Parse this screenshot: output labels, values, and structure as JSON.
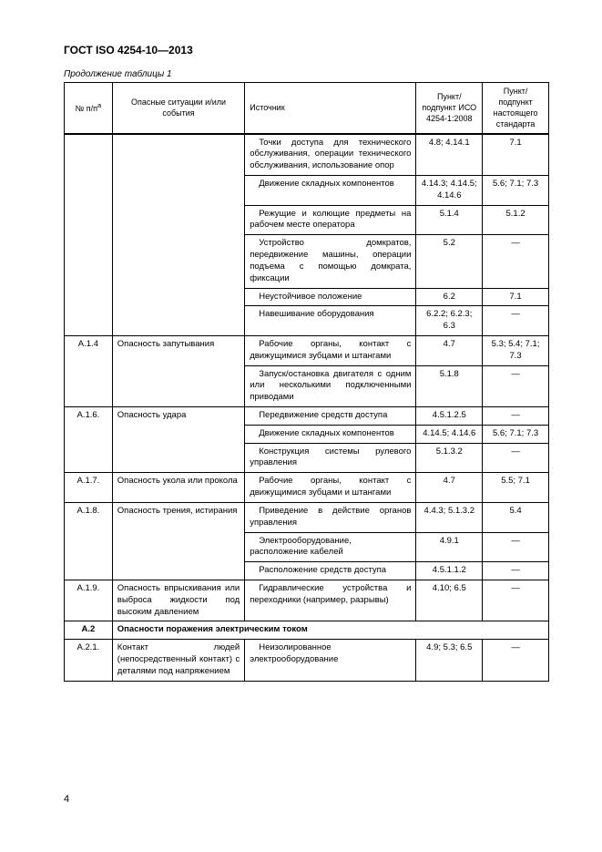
{
  "doc_title": "ГОСТ ISO 4254-10—2013",
  "table_caption": "Продолжение таблицы 1",
  "page_number": "4",
  "headers": {
    "num": "№ п/п",
    "num_sup": "а",
    "hazard": "Опасные ситуации и/или события",
    "source": "Источник",
    "ref1": "Пункт/ подпункт ИСО 4254-1:2008",
    "ref2": "Пункт/ подпункт настоящего стандарта"
  },
  "rows": [
    {
      "num": "",
      "haz": "",
      "src": "Точки доступа для технического обслуживания, операции технического обслуживания, использование опор",
      "r1": "4.8; 4.14.1",
      "r2": "7.1",
      "first_of_group": true
    },
    {
      "num": "",
      "haz": "",
      "src": "Движение складных компонентов",
      "r1": "4.14.3; 4.14.5; 4.14.6",
      "r2": "5.6; 7.1; 7.3"
    },
    {
      "num": "",
      "haz": "",
      "src": "Режущие и колющие предметы на рабочем месте оператора",
      "r1": "5.1.4",
      "r2": "5.1.2"
    },
    {
      "num": "",
      "haz": "",
      "src": "Устройство домкратов, передвижение машины, операции подъема с помощью домкрата, фиксации",
      "r1": "5.2",
      "r2": "—"
    },
    {
      "num": "",
      "haz": "",
      "src": "Неустойчивое положение",
      "r1": "6.2",
      "r2": "7.1"
    },
    {
      "num": "",
      "haz": "",
      "src": "Навешивание оборудования",
      "r1": "6.2.2; 6.2.3; 6.3",
      "r2": "—",
      "last_of_group": true
    },
    {
      "num": "А.1.4",
      "haz": "Опасность запутывания",
      "src": "Рабочие органы, контакт с движущимися зубцами и штангами",
      "r1": "4.7",
      "r2": "5.3; 5.4; 7.1; 7.3",
      "first_of_group": true
    },
    {
      "num": "",
      "haz": "",
      "src": "Запуск/остановка двигателя с одним или несколькими подключенными приводами",
      "r1": "5.1.8",
      "r2": "—",
      "last_of_group": true
    },
    {
      "num": "А.1.6.",
      "haz": "Опасность удара",
      "src": "Передвижение средств доступа",
      "r1": "4.5.1.2.5",
      "r2": "—",
      "first_of_group": true
    },
    {
      "num": "",
      "haz": "",
      "src": "Движение складных компонентов",
      "r1": "4.14.5; 4.14.6",
      "r2": "5.6; 7.1; 7.3"
    },
    {
      "num": "",
      "haz": "",
      "src": "Конструкция системы рулевого управления",
      "r1": "5.1.3.2",
      "r2": "—",
      "last_of_group": true
    },
    {
      "num": "А.1.7.",
      "haz": "Опасность укола или прокола",
      "src": "Рабочие органы, контакт с движущимися зубцами и штангами",
      "r1": "4.7",
      "r2": "5.5; 7.1",
      "single": true
    },
    {
      "num": "А.1.8.",
      "haz": "Опасность трения, истирания",
      "src": "Приведение в действие органов управления",
      "r1": "4.4.3; 5.1.3.2",
      "r2": "5.4",
      "first_of_group": true
    },
    {
      "num": "",
      "haz": "",
      "src": "Электрооборудование, расположение кабелей",
      "r1": "4.9.1",
      "r2": "—"
    },
    {
      "num": "",
      "haz": "",
      "src": "Расположение средств доступа",
      "r1": "4.5.1.1.2",
      "r2": "—",
      "last_of_group": true
    },
    {
      "num": "А.1.9.",
      "haz": "Опасность впрыскивания или выброса жидкости под высоким давлением",
      "src": "Гидравлические устройства и переходники (например, разрывы)",
      "r1": "4.10; 6.5",
      "r2": "—",
      "single": true
    }
  ],
  "section2": {
    "num": "А.2",
    "title": "Опасности поражения электрическим током"
  },
  "rows2": [
    {
      "num": "А.2.1.",
      "haz": "Контакт людей (непосредственный контакт) с деталями под напряжением",
      "src": "Неизолированное электрооборудование",
      "r1": "4.9; 5.3; 6.5",
      "r2": "—",
      "single": true
    }
  ]
}
